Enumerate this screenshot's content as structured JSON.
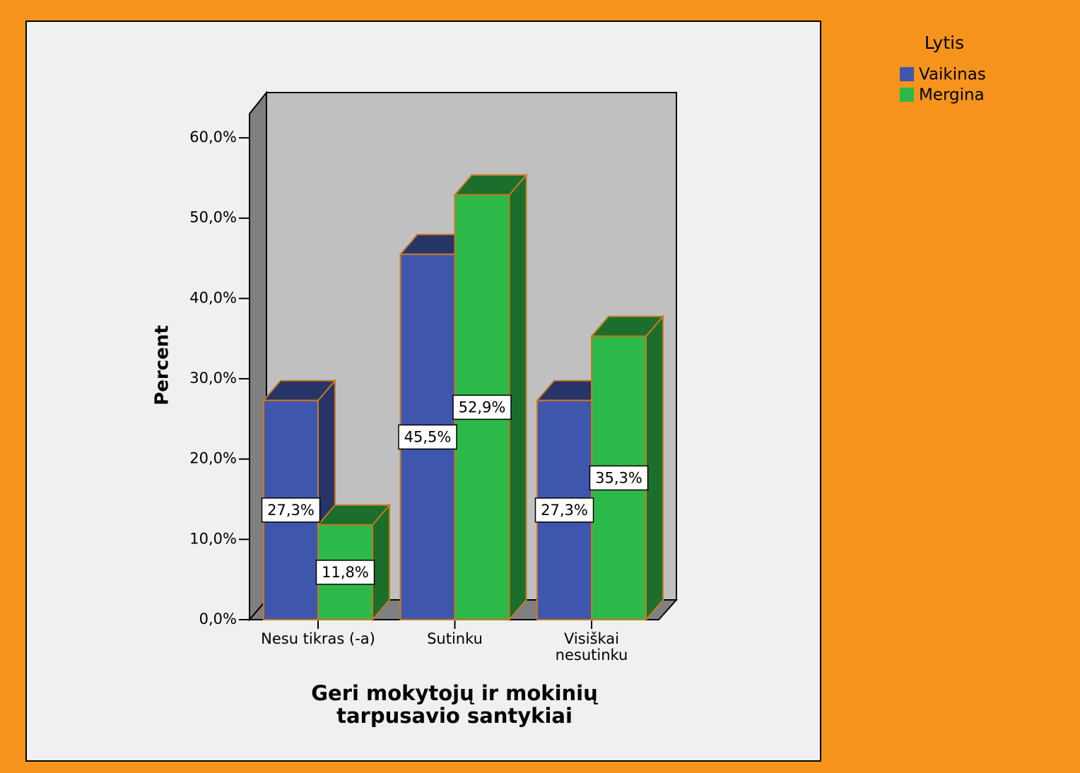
{
  "chart_data": {
    "type": "bar3d",
    "xlabel": "Geri mokytojų ir mokinių tarpusavio santykiai",
    "ylabel": "Percent",
    "legend_title": "Lytis",
    "legend": "right",
    "categories": [
      "Nesu tikras (-a)",
      "Sutinku",
      "Visiškai nesutinku"
    ],
    "series": [
      {
        "name": "Vaikinas",
        "color": "#3f56ad",
        "values": [
          27.3,
          45.5,
          27.3
        ],
        "value_labels": [
          "27,3%",
          "45,5%",
          "27,3%"
        ]
      },
      {
        "name": "Mergina",
        "color": "#2db84a",
        "values": [
          11.8,
          52.9,
          35.3
        ],
        "value_labels": [
          "11,8%",
          "52,9%",
          "35,3%"
        ]
      }
    ],
    "ylim": [
      0,
      63
    ],
    "yticks": [
      {
        "value": 0,
        "label": "0,0%"
      },
      {
        "value": 10,
        "label": "10,0%"
      },
      {
        "value": 20,
        "label": "20,0%"
      },
      {
        "value": 30,
        "label": "30,0%"
      },
      {
        "value": 40,
        "label": "40,0%"
      },
      {
        "value": 50,
        "label": "50,0%"
      },
      {
        "value": 60,
        "label": "60,0%"
      }
    ]
  }
}
